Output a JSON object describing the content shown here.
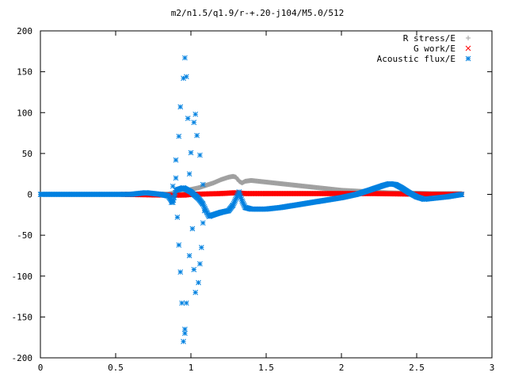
{
  "chart_data": {
    "type": "scatter",
    "title": "m2/n1.5/q1.9/r-+.20-j104/M5.0/512",
    "xlabel": "",
    "ylabel": "",
    "xlim": [
      0,
      3
    ],
    "ylim": [
      -200,
      200
    ],
    "x_ticks": [
      "0",
      "0.5",
      "1",
      "1.5",
      "2",
      "2.5",
      "3"
    ],
    "y_ticks": [
      "200",
      "150",
      "100",
      "50",
      "0",
      "-50",
      "-100",
      "-150",
      "-200"
    ],
    "grid": false,
    "legend_position": "top-right",
    "series": [
      {
        "name": "R stress/E",
        "marker": "plus",
        "color": "#a0a0a0",
        "points": [
          [
            0.55,
            0
          ],
          [
            0.7,
            0
          ],
          [
            0.85,
            0.5
          ],
          [
            0.9,
            2
          ],
          [
            0.95,
            4
          ],
          [
            1.0,
            6
          ],
          [
            1.05,
            8
          ],
          [
            1.1,
            11
          ],
          [
            1.15,
            14
          ],
          [
            1.2,
            18
          ],
          [
            1.25,
            21
          ],
          [
            1.28,
            22
          ],
          [
            1.3,
            21
          ],
          [
            1.32,
            16
          ],
          [
            1.34,
            14
          ],
          [
            1.36,
            16
          ],
          [
            1.4,
            17
          ],
          [
            1.45,
            16
          ],
          [
            1.5,
            15
          ],
          [
            1.6,
            13
          ],
          [
            1.7,
            11
          ],
          [
            1.8,
            9
          ],
          [
            1.9,
            7
          ],
          [
            2.0,
            5
          ],
          [
            2.1,
            4
          ],
          [
            2.2,
            3
          ],
          [
            2.3,
            2
          ],
          [
            2.4,
            1.5
          ],
          [
            2.5,
            1.5
          ],
          [
            2.6,
            1
          ],
          [
            2.7,
            1
          ],
          [
            2.8,
            1
          ]
        ]
      },
      {
        "name": "G work/E",
        "marker": "cross",
        "color": "#ff0000",
        "points": [
          [
            0.55,
            0
          ],
          [
            0.7,
            -0.5
          ],
          [
            0.85,
            -1
          ],
          [
            0.95,
            -1
          ],
          [
            1.0,
            0
          ],
          [
            1.1,
            0.5
          ],
          [
            1.2,
            1
          ],
          [
            1.3,
            2
          ],
          [
            1.35,
            1
          ],
          [
            1.5,
            1
          ],
          [
            1.7,
            1
          ],
          [
            1.9,
            1
          ],
          [
            2.0,
            1
          ],
          [
            2.2,
            1
          ],
          [
            2.4,
            0.5
          ],
          [
            2.6,
            0
          ],
          [
            2.8,
            0
          ]
        ]
      },
      {
        "name": "Acoustic flux/E",
        "marker": "star",
        "color": "#0080e0",
        "curve": [
          [
            0,
            0
          ],
          [
            0.6,
            0
          ],
          [
            0.65,
            1
          ],
          [
            0.7,
            2
          ],
          [
            0.75,
            1
          ],
          [
            0.8,
            0
          ],
          [
            0.85,
            -2
          ],
          [
            0.88,
            -10
          ],
          [
            0.9,
            5
          ],
          [
            0.95,
            8
          ],
          [
            1.0,
            3
          ],
          [
            1.05,
            -5
          ],
          [
            1.08,
            -12
          ],
          [
            1.1,
            -20
          ],
          [
            1.12,
            -27
          ],
          [
            1.15,
            -25
          ],
          [
            1.2,
            -22
          ],
          [
            1.25,
            -20
          ],
          [
            1.28,
            -13
          ],
          [
            1.3,
            -5
          ],
          [
            1.32,
            3
          ],
          [
            1.34,
            -8
          ],
          [
            1.36,
            -16
          ],
          [
            1.4,
            -18
          ],
          [
            1.5,
            -18
          ],
          [
            1.6,
            -16
          ],
          [
            1.7,
            -13
          ],
          [
            1.8,
            -10
          ],
          [
            1.9,
            -7
          ],
          [
            2.0,
            -4
          ],
          [
            2.1,
            0
          ],
          [
            2.2,
            6
          ],
          [
            2.28,
            11
          ],
          [
            2.32,
            13
          ],
          [
            2.36,
            12
          ],
          [
            2.4,
            8
          ],
          [
            2.45,
            2
          ],
          [
            2.5,
            -3
          ],
          [
            2.55,
            -6
          ],
          [
            2.6,
            -5
          ],
          [
            2.7,
            -3
          ],
          [
            2.8,
            0
          ]
        ],
        "scatter": [
          [
            0.88,
            10
          ],
          [
            0.9,
            20
          ],
          [
            0.9,
            42
          ],
          [
            0.92,
            71
          ],
          [
            0.93,
            107
          ],
          [
            0.95,
            142
          ],
          [
            0.96,
            167
          ],
          [
            0.97,
            144
          ],
          [
            0.98,
            93
          ],
          [
            0.99,
            25
          ],
          [
            1.0,
            51
          ],
          [
            1.02,
            88
          ],
          [
            1.03,
            98
          ],
          [
            1.04,
            72
          ],
          [
            1.06,
            48
          ],
          [
            1.08,
            12
          ],
          [
            1.09,
            -20
          ],
          [
            1.08,
            -35
          ],
          [
            1.07,
            -65
          ],
          [
            1.06,
            -85
          ],
          [
            1.05,
            -108
          ],
          [
            1.03,
            -120
          ],
          [
            1.02,
            -92
          ],
          [
            1.01,
            -42
          ],
          [
            0.99,
            -75
          ],
          [
            0.97,
            -133
          ],
          [
            0.96,
            -170
          ],
          [
            0.95,
            -180
          ],
          [
            0.94,
            -133
          ],
          [
            0.93,
            -95
          ],
          [
            0.92,
            -62
          ],
          [
            0.91,
            -28
          ],
          [
            0.87,
            -10
          ],
          [
            0.96,
            -165
          ]
        ]
      }
    ]
  }
}
